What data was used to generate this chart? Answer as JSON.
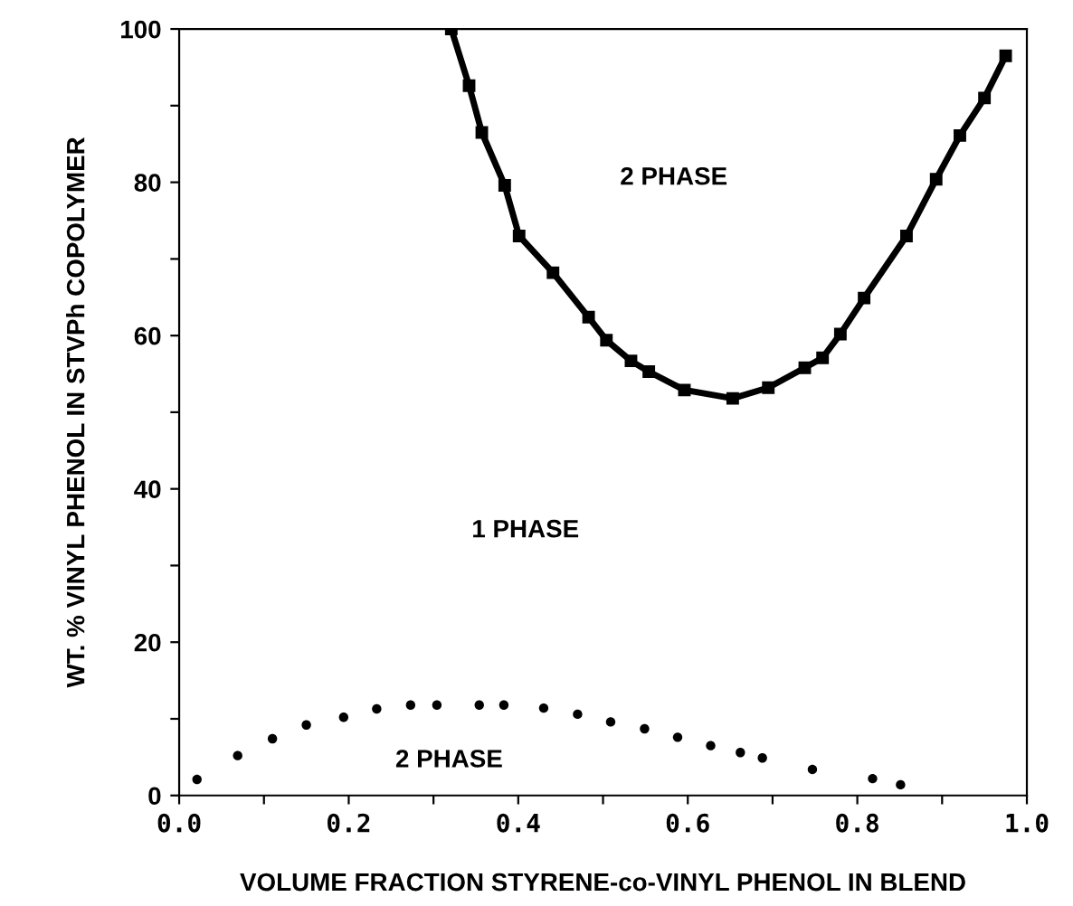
{
  "chart_data": {
    "type": "scatter",
    "xlabel": "VOLUME FRACTION STYRENE-co-VINYL PHENOL IN BLEND",
    "ylabel": "WT. % VINYL PHENOL IN STVPh COPOLYMER",
    "annotations": [
      "2 PHASE",
      "1 PHASE",
      "2 PHASE"
    ],
    "series": [
      {
        "type": "line",
        "marker": "square",
        "color": "#000000",
        "x": [
          0.321,
          0.342,
          0.357,
          0.384,
          0.401,
          0.441,
          0.483,
          0.504,
          0.533,
          0.554,
          0.596,
          0.653,
          0.695,
          0.738,
          0.759,
          0.78,
          0.808,
          0.858,
          0.893,
          0.921,
          0.95,
          0.975
        ],
        "values": [
          100,
          92.6,
          86.5,
          79.6,
          73.0,
          68.2,
          62.4,
          59.4,
          56.7,
          55.3,
          52.9,
          51.8,
          53.2,
          55.8,
          57.1,
          60.2,
          64.9,
          73.0,
          80.4,
          86.1,
          91.0,
          96.5
        ]
      },
      {
        "marker": "circle",
        "color": "#000000",
        "x": [
          0.021,
          0.069,
          0.11,
          0.15,
          0.194,
          0.233,
          0.273,
          0.304,
          0.354,
          0.383,
          0.43,
          0.47,
          0.509,
          0.549,
          0.588,
          0.627,
          0.662,
          0.688,
          0.747,
          0.818,
          0.851
        ],
        "values": [
          2.1,
          5.2,
          7.4,
          9.2,
          10.2,
          11.3,
          11.8,
          11.8,
          11.8,
          11.8,
          11.4,
          10.6,
          9.6,
          8.7,
          7.6,
          6.5,
          5.6,
          4.9,
          3.4,
          2.2,
          1.4
        ]
      }
    ],
    "xlim": [
      0,
      1
    ],
    "ylim": [
      0,
      100
    ],
    "xticks": [
      {
        "value": 0,
        "label": "0.0"
      },
      {
        "value": 0.1,
        "label": null
      },
      0.2,
      {
        "value": 0.3,
        "label": null
      },
      0.4,
      {
        "value": 0.5,
        "label": null
      },
      0.6,
      {
        "value": 0.7,
        "label": null
      },
      0.8,
      {
        "value": 0.9,
        "label": null
      },
      {
        "value": 1,
        "label": "1.0"
      }
    ],
    "yticks": [
      0,
      {
        "value": 10,
        "label": null
      },
      20,
      {
        "value": 30,
        "label": null
      },
      40,
      {
        "value": 50,
        "label": null
      },
      60,
      {
        "value": 70,
        "label": null
      },
      80,
      {
        "value": 90,
        "label": null
      },
      100
    ],
    "grid": false,
    "legend": false
  }
}
